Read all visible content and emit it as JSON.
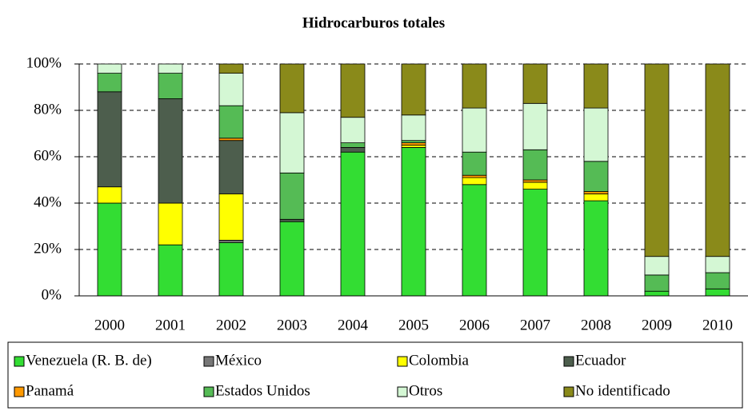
{
  "chart_data": {
    "type": "stacked_bar",
    "title": "Hidrocarburos totales",
    "categories": [
      "2000",
      "2001",
      "2002",
      "2003",
      "2004",
      "2005",
      "2006",
      "2007",
      "2008",
      "2009",
      "2010"
    ],
    "series": [
      {
        "name": "Venezuela (R. B. de)",
        "color": "#33dd33",
        "values": [
          40,
          22,
          23,
          32,
          62,
          64,
          48,
          46,
          41,
          2,
          3
        ]
      },
      {
        "name": "México",
        "color": "#777777",
        "values": [
          0,
          0,
          1,
          0,
          0,
          0,
          0,
          0,
          0,
          0,
          0
        ]
      },
      {
        "name": "Colombia",
        "color": "#ffff00",
        "values": [
          7,
          18,
          20,
          0,
          0,
          1,
          3,
          3,
          3,
          0,
          0
        ]
      },
      {
        "name": "Ecuador",
        "color": "#4d5e4d",
        "values": [
          41,
          45,
          23,
          1,
          2,
          0,
          0,
          0,
          0,
          0,
          0
        ]
      },
      {
        "name": "Panamá",
        "color": "#ff9900",
        "values": [
          0,
          0,
          1,
          0,
          0,
          1,
          1,
          1,
          1,
          0,
          0
        ]
      },
      {
        "name": "Estados Unidos",
        "color": "#55bb55",
        "values": [
          8,
          11,
          14,
          20,
          2,
          1,
          10,
          13,
          13,
          7,
          7
        ]
      },
      {
        "name": "Otros",
        "color": "#d4f7d4",
        "values": [
          4,
          4,
          14,
          26,
          11,
          11,
          19,
          20,
          23,
          8,
          7
        ]
      },
      {
        "name": "No identificado",
        "color": "#8a8a1a",
        "values": [
          0,
          0,
          4,
          21,
          23,
          22,
          19,
          17,
          19,
          83,
          83
        ]
      }
    ],
    "ylim": [
      0,
      100
    ],
    "yticks": [
      {
        "value": 0,
        "label": "0%"
      },
      {
        "value": 20,
        "label": "20%"
      },
      {
        "value": 40,
        "label": "40%"
      },
      {
        "value": 60,
        "label": "60%"
      },
      {
        "value": 80,
        "label": "80%"
      },
      {
        "value": 100,
        "label": "100%"
      }
    ],
    "grid": true
  }
}
